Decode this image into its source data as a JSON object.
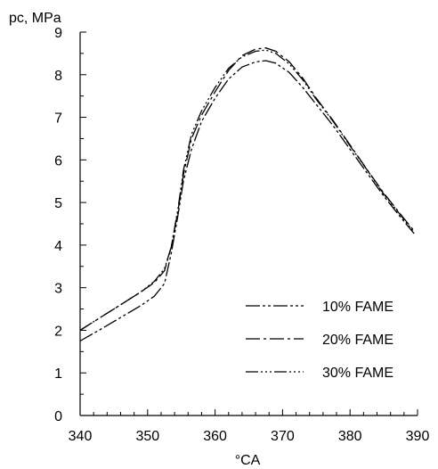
{
  "chart_data": {
    "type": "line",
    "title": "",
    "ylabel": "pc, MPa",
    "xlabel": "°CA",
    "xlim": [
      340,
      390
    ],
    "ylim": [
      0,
      9
    ],
    "x_ticks": [
      "340",
      "350",
      "360",
      "370",
      "380",
      "390"
    ],
    "y_ticks": [
      "0",
      "1",
      "2",
      "3",
      "4",
      "5",
      "6",
      "7",
      "8",
      "9"
    ],
    "grid": false,
    "legend_position": "bottom-right",
    "series": [
      {
        "name": "10% FAME",
        "dash": "16,3,3,3,3,3",
        "points": [
          [
            340,
            1.75
          ],
          [
            343,
            2.02
          ],
          [
            346,
            2.3
          ],
          [
            349,
            2.58
          ],
          [
            351,
            2.8
          ],
          [
            352.5,
            3.1
          ],
          [
            353.5,
            3.8
          ],
          [
            354.5,
            4.7
          ],
          [
            355.3,
            5.5
          ],
          [
            356.5,
            6.25
          ],
          [
            358,
            6.9
          ],
          [
            360,
            7.45
          ],
          [
            362,
            7.9
          ],
          [
            364,
            8.18
          ],
          [
            366,
            8.3
          ],
          [
            367.5,
            8.33
          ],
          [
            369,
            8.27
          ],
          [
            371,
            8.05
          ],
          [
            373,
            7.7
          ],
          [
            375,
            7.3
          ],
          [
            377.5,
            6.8
          ],
          [
            380,
            6.25
          ],
          [
            382.5,
            5.7
          ],
          [
            385,
            5.15
          ],
          [
            387.5,
            4.65
          ],
          [
            389.5,
            4.27
          ]
        ]
      },
      {
        "name": "20% FAME",
        "dash": "16,4,3,4",
        "points": [
          [
            340,
            2.0
          ],
          [
            343,
            2.3
          ],
          [
            346,
            2.6
          ],
          [
            349,
            2.9
          ],
          [
            351,
            3.12
          ],
          [
            352.5,
            3.4
          ],
          [
            353.5,
            3.95
          ],
          [
            354.5,
            4.8
          ],
          [
            355.3,
            5.65
          ],
          [
            356.5,
            6.5
          ],
          [
            358,
            7.05
          ],
          [
            360,
            7.6
          ],
          [
            362,
            8.1
          ],
          [
            364,
            8.45
          ],
          [
            366,
            8.6
          ],
          [
            367.5,
            8.63
          ],
          [
            369,
            8.55
          ],
          [
            371,
            8.3
          ],
          [
            373,
            7.92
          ],
          [
            375,
            7.45
          ],
          [
            377.5,
            6.92
          ],
          [
            380,
            6.35
          ],
          [
            382.5,
            5.78
          ],
          [
            385,
            5.22
          ],
          [
            387.5,
            4.72
          ],
          [
            389.5,
            4.33
          ]
        ]
      },
      {
        "name": "30% FAME",
        "dash": "14,3,2,3,2,3,2,3",
        "points": [
          [
            340,
            2.0
          ],
          [
            343,
            2.3
          ],
          [
            346,
            2.6
          ],
          [
            349,
            2.9
          ],
          [
            351,
            3.15
          ],
          [
            352.5,
            3.45
          ],
          [
            353.5,
            3.95
          ],
          [
            354.5,
            4.85
          ],
          [
            355.3,
            5.75
          ],
          [
            356.5,
            6.6
          ],
          [
            358,
            7.15
          ],
          [
            360,
            7.7
          ],
          [
            362,
            8.15
          ],
          [
            364,
            8.42
          ],
          [
            366,
            8.55
          ],
          [
            367.5,
            8.58
          ],
          [
            369,
            8.5
          ],
          [
            371,
            8.25
          ],
          [
            373,
            7.88
          ],
          [
            375,
            7.42
          ],
          [
            377.5,
            6.9
          ],
          [
            380,
            6.33
          ],
          [
            382.5,
            5.77
          ],
          [
            385,
            5.2
          ],
          [
            387.5,
            4.7
          ],
          [
            389.5,
            4.3
          ]
        ]
      }
    ]
  }
}
